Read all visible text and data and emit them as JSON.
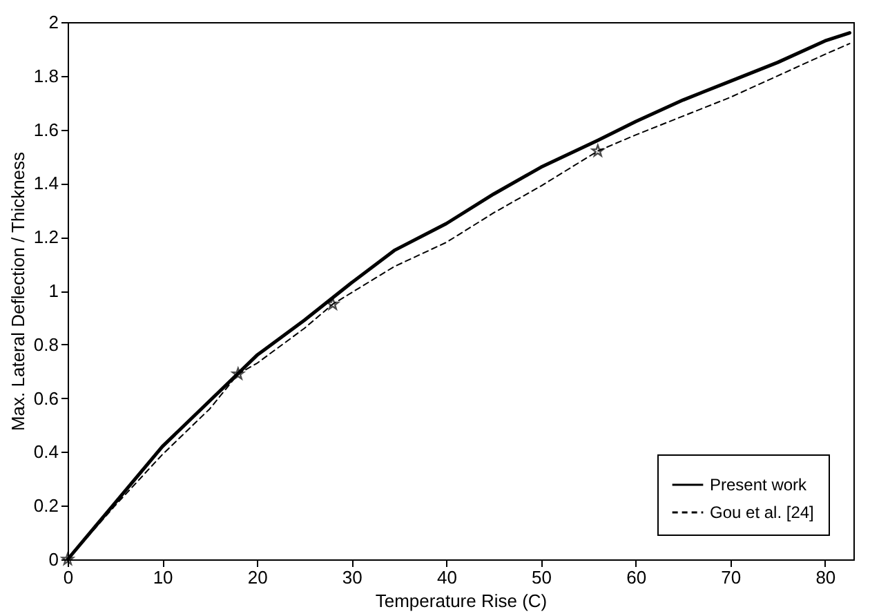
{
  "chart_data": {
    "type": "line",
    "xlabel": "Temperature Rise (C)",
    "ylabel": "Max. Lateral Deflection / Thickness",
    "xlim": [
      0,
      83
    ],
    "xticks": [
      0,
      10,
      20,
      30,
      40,
      50,
      60,
      70,
      80
    ],
    "ylim": [
      0,
      2
    ],
    "yticks": [
      0,
      0.2,
      0.4,
      0.6,
      0.8,
      1,
      1.2,
      1.4,
      1.6,
      1.8,
      2
    ],
    "grid": false,
    "legend": "bottom right",
    "series": [
      {
        "name": "Present work",
        "color": "#000000",
        "line_style": "solid",
        "marker": "none",
        "x": [
          0,
          5,
          10,
          15,
          20,
          25,
          30,
          34.5,
          40,
          45,
          50,
          56,
          60,
          65,
          70,
          75,
          80,
          82.6
        ],
        "values": [
          0,
          0.21,
          0.42,
          0.59,
          0.76,
          0.89,
          1.03,
          1.15,
          1.25,
          1.36,
          1.46,
          1.56,
          1.63,
          1.71,
          1.78,
          1.85,
          1.93,
          1.96
        ]
      },
      {
        "name": "Gou et al. [24]",
        "color": "#000000",
        "line_style": "dashed",
        "marker": "none",
        "x": [
          0,
          5,
          10,
          15,
          18,
          20,
          25,
          28,
          34.5,
          40,
          45,
          50,
          56,
          60,
          65,
          70,
          75,
          80,
          82.6
        ],
        "values": [
          0,
          0.2,
          0.39,
          0.56,
          0.69,
          0.73,
          0.86,
          0.95,
          1.09,
          1.18,
          1.29,
          1.39,
          1.52,
          1.58,
          1.65,
          1.72,
          1.8,
          1.88,
          1.92
        ]
      },
      {
        "type": "scatter",
        "color": "#000000",
        "marker": "star",
        "x": [
          0,
          18,
          28,
          56
        ],
        "values": [
          0,
          0.69,
          0.95,
          1.52
        ]
      }
    ]
  }
}
